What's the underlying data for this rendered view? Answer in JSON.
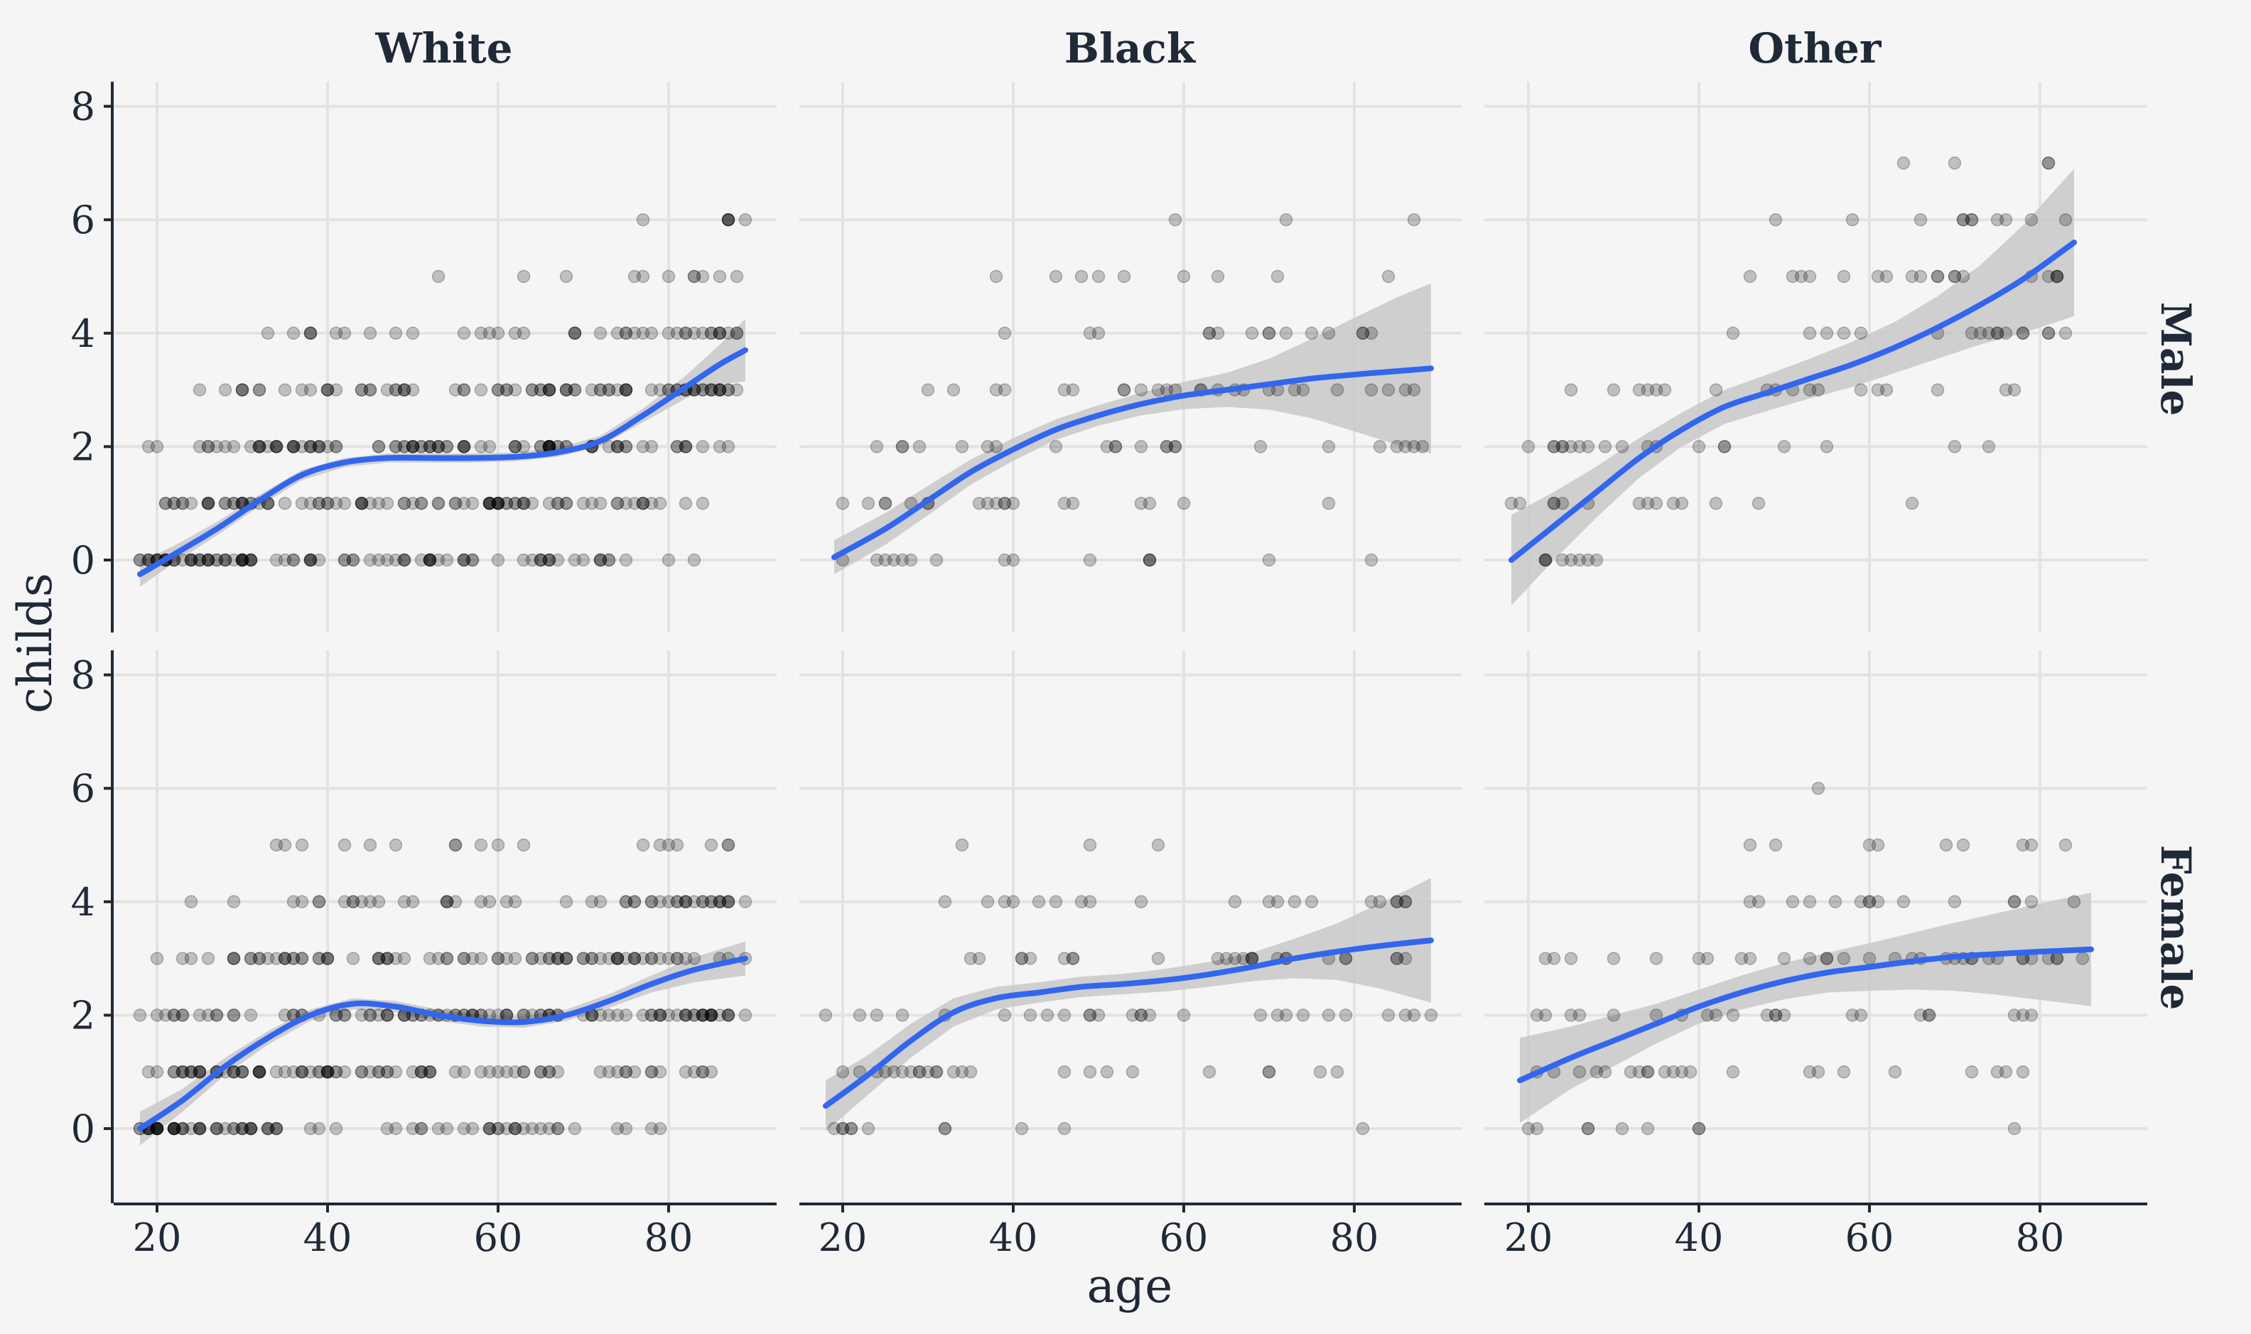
{
  "chart_data": {
    "type": "scatter",
    "xlabel": "age",
    "ylabel": "childs",
    "x_ticks": [
      20,
      40,
      60,
      80
    ],
    "y_ticks": [
      0,
      2,
      4,
      6,
      8
    ],
    "xlim": [
      15,
      93
    ],
    "ylim": [
      -1.3,
      8.5
    ],
    "grid": true,
    "columns": [
      "White",
      "Black",
      "Other"
    ],
    "rows": [
      "Male",
      "Female"
    ],
    "smooth": {
      "color": "#3366ee",
      "band_color": "#c8c8c8"
    },
    "point_color": "#000000",
    "panels": [
      {
        "race": "White",
        "sex": "Male",
        "trend": [
          [
            18,
            -0.25
          ],
          [
            22,
            0.1
          ],
          [
            27,
            0.55
          ],
          [
            32,
            1.05
          ],
          [
            37,
            1.5
          ],
          [
            42,
            1.72
          ],
          [
            47,
            1.8
          ],
          [
            52,
            1.8
          ],
          [
            57,
            1.8
          ],
          [
            62,
            1.82
          ],
          [
            67,
            1.9
          ],
          [
            72,
            2.1
          ],
          [
            77,
            2.55
          ],
          [
            82,
            3.05
          ],
          [
            86,
            3.45
          ],
          [
            89,
            3.7
          ]
        ],
        "band": [
          0.22,
          0.15,
          0.12,
          0.1,
          0.09,
          0.08,
          0.08,
          0.08,
          0.08,
          0.08,
          0.08,
          0.09,
          0.12,
          0.2,
          0.35,
          0.55
        ]
      },
      {
        "race": "Black",
        "sex": "Male",
        "trend": [
          [
            19,
            0.05
          ],
          [
            25,
            0.55
          ],
          [
            30,
            1.05
          ],
          [
            35,
            1.55
          ],
          [
            40,
            1.95
          ],
          [
            45,
            2.3
          ],
          [
            50,
            2.55
          ],
          [
            55,
            2.75
          ],
          [
            60,
            2.9
          ],
          [
            65,
            3.0
          ],
          [
            70,
            3.1
          ],
          [
            75,
            3.2
          ],
          [
            80,
            3.27
          ],
          [
            85,
            3.33
          ],
          [
            89,
            3.38
          ]
        ],
        "band": [
          0.3,
          0.28,
          0.26,
          0.22,
          0.2,
          0.18,
          0.18,
          0.2,
          0.24,
          0.3,
          0.45,
          0.7,
          1.0,
          1.3,
          1.5
        ]
      },
      {
        "race": "Other",
        "sex": "Male",
        "trend": [
          [
            18,
            0.0
          ],
          [
            23,
            0.6
          ],
          [
            28,
            1.2
          ],
          [
            33,
            1.8
          ],
          [
            38,
            2.3
          ],
          [
            43,
            2.7
          ],
          [
            48,
            2.95
          ],
          [
            53,
            3.2
          ],
          [
            58,
            3.45
          ],
          [
            63,
            3.75
          ],
          [
            68,
            4.1
          ],
          [
            73,
            4.5
          ],
          [
            78,
            4.95
          ],
          [
            84,
            5.6
          ]
        ],
        "band": [
          0.8,
          0.6,
          0.45,
          0.35,
          0.3,
          0.3,
          0.32,
          0.35,
          0.4,
          0.45,
          0.55,
          0.7,
          0.95,
          1.3
        ]
      },
      {
        "race": "White",
        "sex": "Female",
        "trend": [
          [
            18,
            0.0
          ],
          [
            23,
            0.5
          ],
          [
            28,
            1.1
          ],
          [
            33,
            1.6
          ],
          [
            38,
            2.0
          ],
          [
            43,
            2.2
          ],
          [
            48,
            2.15
          ],
          [
            53,
            2.0
          ],
          [
            58,
            1.9
          ],
          [
            63,
            1.88
          ],
          [
            68,
            2.0
          ],
          [
            73,
            2.25
          ],
          [
            78,
            2.55
          ],
          [
            83,
            2.8
          ],
          [
            89,
            3.0
          ]
        ],
        "band": [
          0.3,
          0.2,
          0.15,
          0.12,
          0.1,
          0.1,
          0.1,
          0.1,
          0.1,
          0.1,
          0.1,
          0.12,
          0.15,
          0.22,
          0.3
        ]
      },
      {
        "race": "Black",
        "sex": "Female",
        "trend": [
          [
            18,
            0.4
          ],
          [
            23,
            0.95
          ],
          [
            28,
            1.55
          ],
          [
            33,
            2.05
          ],
          [
            38,
            2.3
          ],
          [
            43,
            2.4
          ],
          [
            48,
            2.5
          ],
          [
            53,
            2.55
          ],
          [
            58,
            2.62
          ],
          [
            63,
            2.72
          ],
          [
            68,
            2.85
          ],
          [
            73,
            3.0
          ],
          [
            78,
            3.12
          ],
          [
            83,
            3.22
          ],
          [
            89,
            3.32
          ]
        ],
        "band": [
          0.45,
          0.35,
          0.3,
          0.25,
          0.2,
          0.18,
          0.18,
          0.18,
          0.2,
          0.22,
          0.25,
          0.35,
          0.5,
          0.75,
          1.1
        ]
      },
      {
        "race": "Other",
        "sex": "Female",
        "trend": [
          [
            19,
            0.85
          ],
          [
            25,
            1.25
          ],
          [
            30,
            1.55
          ],
          [
            35,
            1.85
          ],
          [
            40,
            2.15
          ],
          [
            45,
            2.4
          ],
          [
            50,
            2.6
          ],
          [
            55,
            2.75
          ],
          [
            60,
            2.85
          ],
          [
            65,
            2.95
          ],
          [
            70,
            3.03
          ],
          [
            75,
            3.08
          ],
          [
            80,
            3.12
          ],
          [
            86,
            3.16
          ]
        ],
        "band": [
          0.75,
          0.55,
          0.45,
          0.35,
          0.3,
          0.3,
          0.32,
          0.35,
          0.42,
          0.5,
          0.6,
          0.72,
          0.85,
          1.0
        ]
      }
    ]
  }
}
